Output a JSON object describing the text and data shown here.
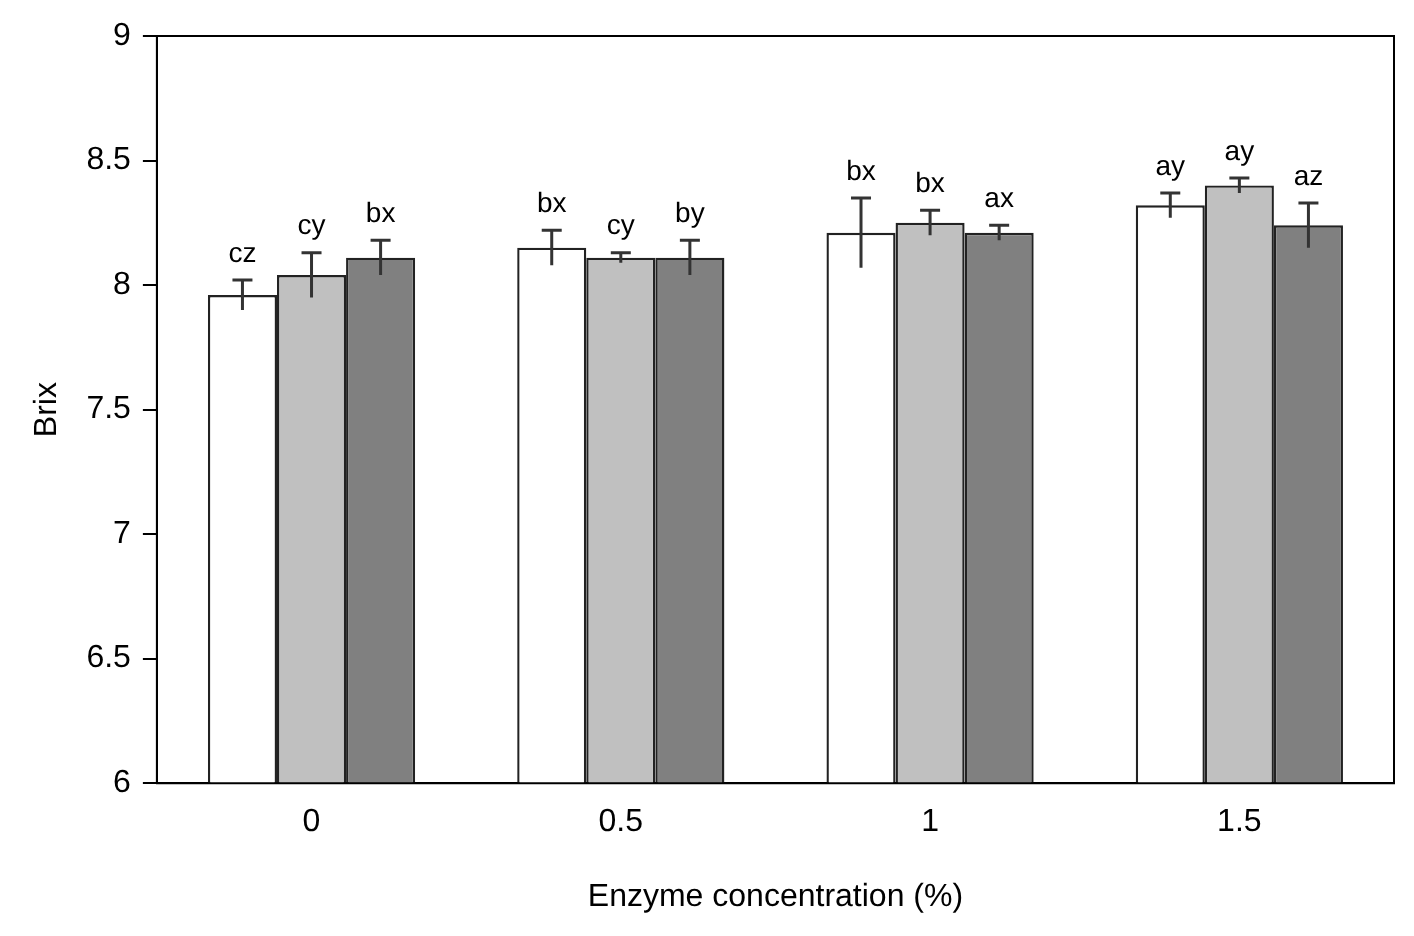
{
  "chart_data": {
    "type": "bar",
    "xlabel": "Enzyme concentration (%)",
    "ylabel": "Brix",
    "categories": [
      "0",
      "0.5",
      "1",
      "1.5"
    ],
    "series": [
      {
        "color": "#ffffff",
        "values": [
          7.96,
          8.15,
          8.21,
          8.32
        ],
        "errors": [
          0.06,
          0.07,
          0.14,
          0.05
        ]
      },
      {
        "color": "#c0c0c0",
        "values": [
          8.04,
          8.11,
          8.25,
          8.4
        ],
        "errors": [
          0.09,
          0.02,
          0.05,
          0.03
        ]
      },
      {
        "color": "#808080",
        "values": [
          8.11,
          8.11,
          8.21,
          8.24
        ],
        "errors": [
          0.07,
          0.07,
          0.03,
          0.09
        ]
      }
    ],
    "ylim": [
      6,
      9
    ],
    "yticks": [
      6,
      6.5,
      7,
      7.5,
      8,
      8.5,
      9
    ],
    "grid": false,
    "legend": false,
    "annotations": [
      "cz",
      "cy",
      "bx",
      "bx",
      "cy",
      "by",
      "bx",
      "bx",
      "ax",
      "ay",
      "ay",
      "az"
    ]
  }
}
